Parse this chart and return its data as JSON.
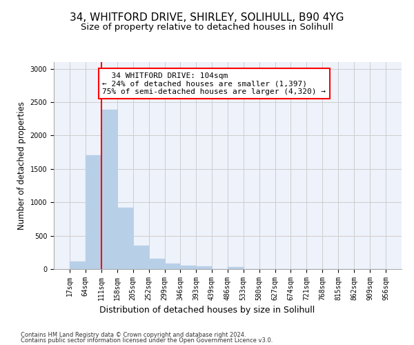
{
  "title1": "34, WHITFORD DRIVE, SHIRLEY, SOLIHULL, B90 4YG",
  "title2": "Size of property relative to detached houses in Solihull",
  "xlabel": "Distribution of detached houses by size in Solihull",
  "ylabel": "Number of detached properties",
  "footnote1": "Contains HM Land Registry data © Crown copyright and database right 2024.",
  "footnote2": "Contains public sector information licensed under the Open Government Licence v3.0.",
  "annotation_line1": "  34 WHITFORD DRIVE: 104sqm",
  "annotation_line2": "← 24% of detached houses are smaller (1,397)",
  "annotation_line3": "75% of semi-detached houses are larger (4,320) →",
  "bar_edges": [
    17,
    64,
    111,
    158,
    205,
    252,
    299,
    346,
    393,
    439,
    486,
    533,
    580,
    627,
    674,
    721,
    768,
    815,
    862,
    909,
    956
  ],
  "bar_heights": [
    110,
    1700,
    2390,
    920,
    355,
    150,
    80,
    55,
    40,
    0,
    30,
    0,
    0,
    0,
    0,
    0,
    0,
    0,
    0,
    0
  ],
  "bar_color": "#b8cfe8",
  "bar_edge_color": "#b8cfe8",
  "grid_color": "#cccccc",
  "vline_x": 111,
  "vline_color": "red",
  "annotation_box_color": "red",
  "ylim": [
    0,
    3100
  ],
  "yticks": [
    0,
    500,
    1000,
    1500,
    2000,
    2500,
    3000
  ],
  "background_color": "#eef2fb",
  "fig_background": "#ffffff",
  "title1_fontsize": 11,
  "title2_fontsize": 9.5,
  "xlabel_fontsize": 9,
  "ylabel_fontsize": 8.5,
  "tick_fontsize": 7,
  "annotation_fontsize": 8,
  "footnote_fontsize": 6
}
